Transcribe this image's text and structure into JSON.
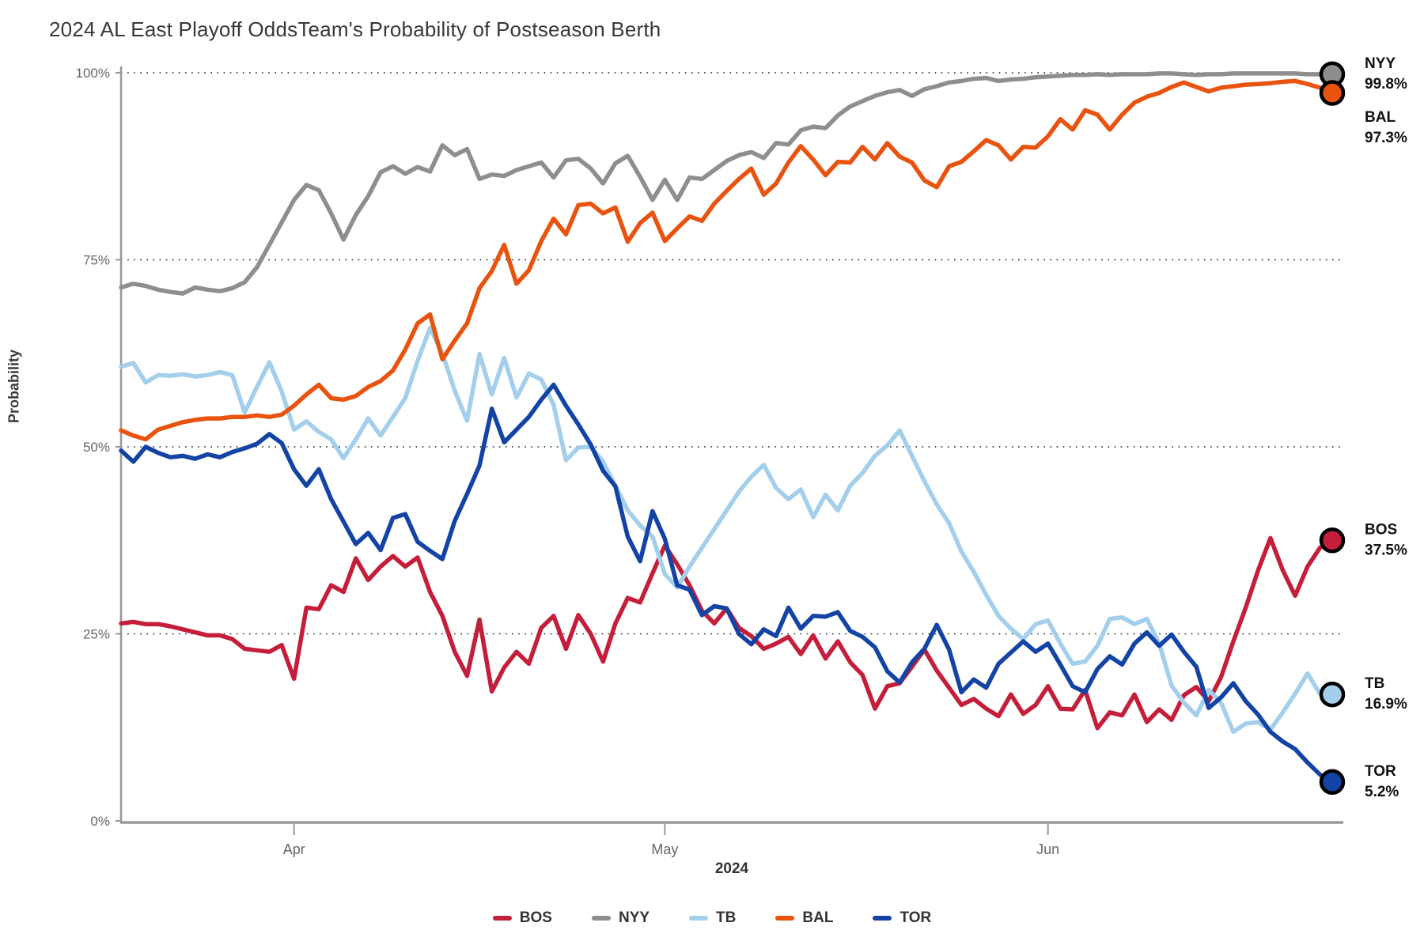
{
  "title": "2024 AL East Playoff Odds",
  "subtitle": "Team's Probability of Postseason Berth",
  "chart_data": {
    "type": "line",
    "title": "2024 AL East Playoff Odds",
    "subtitle": "Team's Probability of Postseason Berth",
    "xlabel": "2024",
    "ylabel": "Probability",
    "x_tick_labels": [
      "Apr",
      "May",
      "Jun"
    ],
    "x_tick_day_index": [
      14,
      44,
      75
    ],
    "n_points": 99,
    "x_span_note": "daily values, mid-March through late June 2024",
    "y_tick_labels": [
      "0%",
      "25%",
      "50%",
      "75%",
      "100%"
    ],
    "y_tick_values": [
      0,
      25,
      50,
      75,
      100
    ],
    "ylim": [
      0,
      100
    ],
    "grid": "dotted horizontal lines at 25, 50, 75, 100",
    "legend_position": "bottom center",
    "axis_color": "#999999",
    "grid_color": "#1a1a1a",
    "tick_text_color": "#666666",
    "series": [
      {
        "name": "BOS",
        "color": "#c41e3a",
        "end_label": "BOS",
        "end_value_label": "37.5%",
        "values": [
          26.4,
          26.6,
          26.3,
          26.3,
          26.0,
          25.6,
          25.2,
          24.8,
          24.8,
          24.3,
          23.0,
          22.8,
          22.6,
          23.5,
          19.0,
          28.5,
          28.3,
          31.5,
          30.6,
          35.1,
          32.2,
          34.0,
          35.4,
          34.0,
          35.2,
          30.6,
          27.4,
          22.6,
          19.4,
          26.9,
          17.3,
          20.5,
          22.6,
          21.0,
          25.8,
          27.4,
          23.0,
          27.5,
          25.0,
          21.3,
          26.4,
          29.8,
          29.2,
          33.1,
          36.8,
          34.3,
          31.5,
          28.1,
          26.4,
          28.4,
          25.8,
          24.7,
          23.0,
          23.7,
          24.6,
          22.3,
          24.8,
          21.7,
          24.0,
          21.2,
          19.5,
          15.0,
          18.0,
          18.4,
          20.6,
          22.9,
          20.1,
          17.8,
          15.5,
          16.3,
          15.0,
          14.0,
          16.9,
          14.3,
          15.5,
          18.0,
          15.0,
          14.9,
          17.5,
          12.4,
          14.5,
          14.1,
          16.9,
          13.2,
          14.9,
          13.5,
          16.8,
          17.9,
          16.0,
          19.2,
          24.0,
          28.5,
          33.5,
          37.8,
          33.5,
          30.1,
          34.0,
          36.5,
          37.5
        ]
      },
      {
        "name": "NYY",
        "color": "#8e8e8e",
        "end_label": "NYY",
        "end_value_label": "99.8%",
        "values": [
          71.3,
          71.8,
          71.5,
          71.0,
          70.7,
          70.5,
          71.3,
          71.0,
          70.8,
          71.2,
          72.0,
          74.0,
          77.0,
          80.0,
          83.0,
          85.0,
          84.3,
          81.2,
          77.7,
          81.0,
          83.5,
          86.7,
          87.5,
          86.5,
          87.4,
          86.8,
          90.3,
          89.0,
          89.8,
          85.8,
          86.4,
          86.2,
          87.0,
          87.5,
          88.0,
          86.0,
          88.3,
          88.5,
          87.2,
          85.2,
          87.9,
          88.9,
          86.1,
          83.0,
          85.7,
          83.0,
          86.0,
          85.8,
          87.0,
          88.2,
          89.0,
          89.4,
          88.6,
          90.6,
          90.4,
          92.3,
          92.8,
          92.6,
          94.3,
          95.5,
          96.2,
          96.9,
          97.4,
          97.7,
          96.9,
          97.8,
          98.2,
          98.7,
          98.9,
          99.2,
          99.3,
          98.9,
          99.1,
          99.2,
          99.4,
          99.5,
          99.6,
          99.7,
          99.7,
          99.8,
          99.7,
          99.8,
          99.8,
          99.8,
          99.9,
          99.9,
          99.8,
          99.7,
          99.8,
          99.8,
          99.9,
          99.9,
          99.9,
          99.9,
          99.9,
          99.9,
          99.8,
          99.8,
          99.8
        ]
      },
      {
        "name": "TB",
        "color": "#a3cfec",
        "end_label": "TB",
        "end_value_label": "16.9%",
        "values": [
          60.7,
          61.2,
          58.6,
          59.6,
          59.5,
          59.7,
          59.4,
          59.6,
          60.0,
          59.6,
          54.6,
          58.0,
          61.3,
          57.4,
          52.3,
          53.4,
          52.0,
          51.0,
          48.5,
          51.0,
          53.8,
          51.5,
          54.0,
          56.5,
          61.5,
          65.9,
          62.5,
          57.5,
          53.5,
          62.4,
          57.0,
          61.9,
          56.6,
          59.8,
          59.0,
          55.6,
          48.2,
          49.9,
          50.0,
          48.0,
          44.8,
          41.5,
          39.5,
          38.0,
          33.0,
          31.2,
          34.0,
          36.5,
          39.0,
          41.5,
          44.0,
          46.0,
          47.6,
          44.5,
          43.0,
          44.3,
          40.6,
          43.6,
          41.5,
          44.8,
          46.5,
          48.8,
          50.2,
          52.2,
          48.8,
          45.4,
          42.3,
          39.8,
          36.0,
          33.3,
          30.2,
          27.4,
          25.7,
          24.3,
          26.3,
          26.8,
          23.7,
          21.0,
          21.3,
          23.4,
          27.0,
          27.2,
          26.3,
          27.0,
          23.7,
          18.1,
          15.8,
          14.1,
          17.5,
          15.8,
          11.9,
          13.0,
          13.2,
          12.2,
          14.5,
          17.0,
          19.7,
          17.0,
          16.9
        ]
      },
      {
        "name": "BAL",
        "color": "#e8530f",
        "end_label": "BAL",
        "end_value_label": "97.3%",
        "values": [
          52.2,
          51.5,
          51.0,
          52.3,
          52.8,
          53.3,
          53.6,
          53.8,
          53.8,
          54.0,
          54.0,
          54.2,
          54.0,
          54.3,
          55.5,
          57.0,
          58.3,
          56.5,
          56.3,
          56.8,
          58.0,
          58.8,
          60.2,
          63.0,
          66.5,
          67.7,
          61.7,
          64.2,
          66.5,
          71.2,
          73.5,
          77.0,
          71.8,
          73.6,
          77.5,
          80.5,
          78.4,
          82.3,
          82.5,
          81.2,
          82.0,
          77.4,
          79.9,
          81.3,
          77.5,
          79.2,
          80.8,
          80.2,
          82.5,
          84.2,
          85.8,
          87.2,
          83.7,
          85.2,
          88.0,
          90.2,
          88.4,
          86.3,
          88.1,
          88.0,
          90.1,
          88.4,
          90.6,
          88.8,
          88.0,
          85.6,
          84.7,
          87.5,
          88.1,
          89.5,
          91.0,
          90.3,
          88.4,
          90.1,
          90.0,
          91.5,
          93.8,
          92.4,
          95.0,
          94.4,
          92.4,
          94.4,
          96.0,
          96.8,
          97.3,
          98.1,
          98.7,
          98.1,
          97.5,
          98.0,
          98.2,
          98.4,
          98.5,
          98.6,
          98.8,
          98.9,
          98.5,
          98.0,
          97.3
        ]
      },
      {
        "name": "TOR",
        "color": "#1243a5",
        "end_label": "TOR",
        "end_value_label": "5.2%",
        "values": [
          49.5,
          48.0,
          50.0,
          49.2,
          48.6,
          48.8,
          48.4,
          49.0,
          48.6,
          49.3,
          49.8,
          50.4,
          51.7,
          50.5,
          47.0,
          44.8,
          47.0,
          43.0,
          40.0,
          37.0,
          38.5,
          36.2,
          40.5,
          41.0,
          37.3,
          36.1,
          35.0,
          40.1,
          43.7,
          47.5,
          55.1,
          50.6,
          52.3,
          54.0,
          56.3,
          58.3,
          55.5,
          53.0,
          50.3,
          46.8,
          44.7,
          38.0,
          34.7,
          41.4,
          37.7,
          31.5,
          30.9,
          27.5,
          28.7,
          28.4,
          25.0,
          23.6,
          25.6,
          24.7,
          28.5,
          25.7,
          27.4,
          27.3,
          27.9,
          25.4,
          24.6,
          23.2,
          20.0,
          18.5,
          21.2,
          23.0,
          26.2,
          22.9,
          17.2,
          18.9,
          17.8,
          21.0,
          22.5,
          24.0,
          22.6,
          23.7,
          20.9,
          18.0,
          17.2,
          20.3,
          22.0,
          20.9,
          23.7,
          25.2,
          23.4,
          24.9,
          22.6,
          20.6,
          15.1,
          16.5,
          18.4,
          16.0,
          14.2,
          11.9,
          10.6,
          9.6,
          7.8,
          6.2,
          5.2
        ]
      }
    ]
  }
}
